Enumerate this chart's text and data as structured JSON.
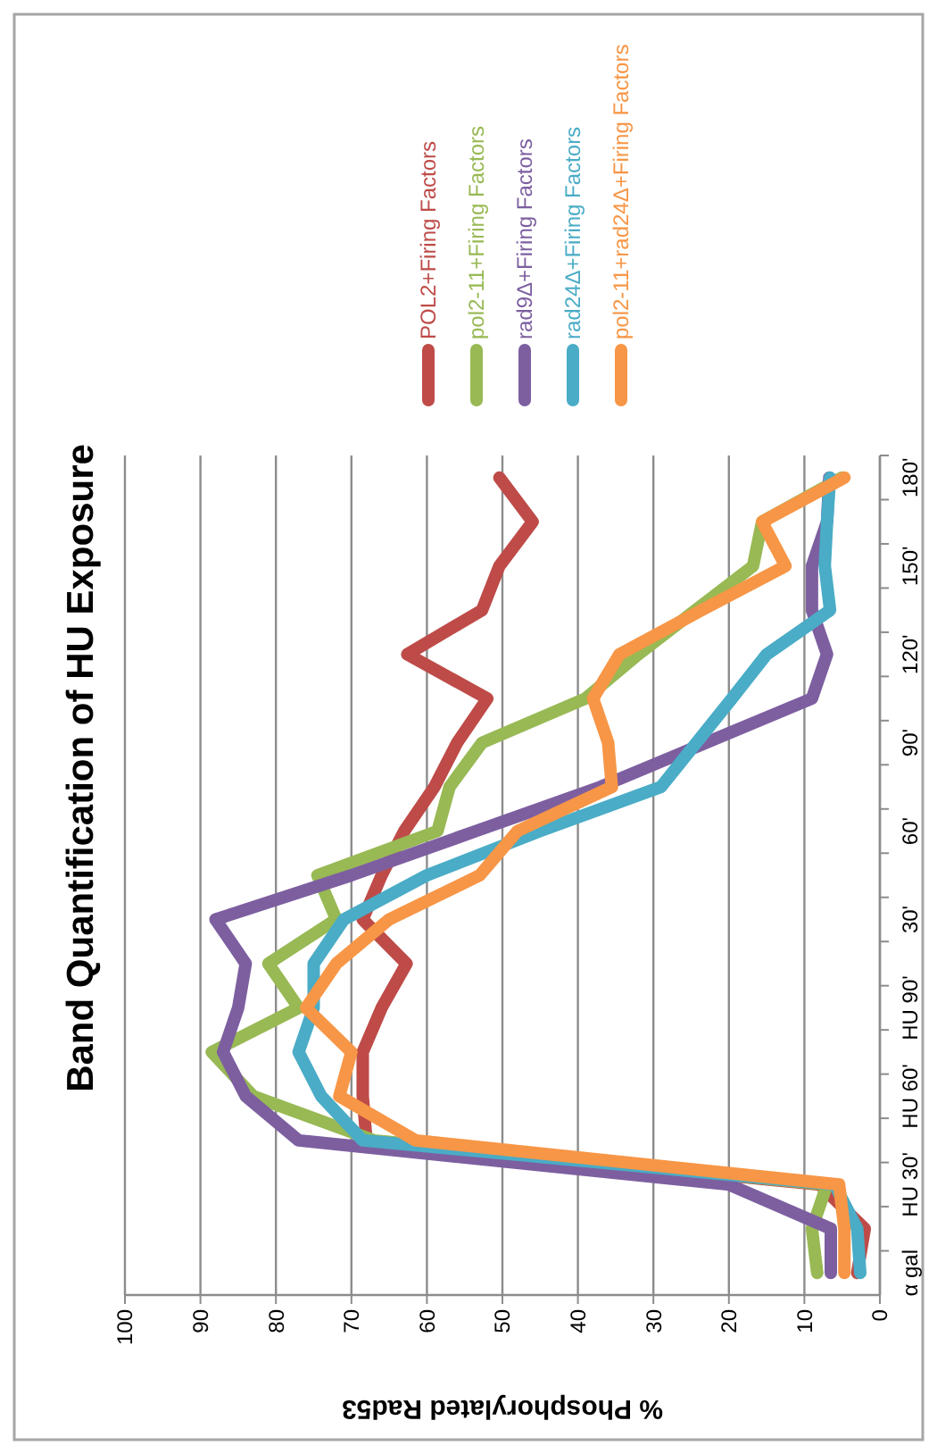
{
  "chart_data": {
    "type": "line",
    "orientation": "horizontal",
    "title": "Band Quantification of HU Exposure",
    "xlabel": "% Phosphorylated Rad53",
    "categories": [
      "180'",
      null,
      "150'",
      null,
      "120'",
      null,
      "90'",
      null,
      "60'",
      null,
      "30'",
      null,
      "HU 90'",
      null,
      "HU 60'",
      null,
      "HU 30'",
      null,
      "α gal"
    ],
    "series": [
      {
        "name": "POL2+Firing Factors",
        "color": "#be4b48",
        "values": [
          50.4,
          46,
          50.4,
          52.7,
          62.6,
          52,
          56,
          59,
          63,
          66,
          68.5,
          62.7,
          66,
          68.5,
          68.5,
          68,
          8,
          2,
          3
        ]
      },
      {
        "name": "pol2-11+Firing Factors",
        "color": "#98b954",
        "values": [
          5,
          15.6,
          16.8,
          24.4,
          32,
          39,
          52.7,
          57,
          58.6,
          74.5,
          72,
          81,
          77,
          88.5,
          83,
          67,
          7,
          9,
          8.3
        ]
      },
      {
        "name": "rad9Δ+Firing Factors",
        "color": "#7d5fa0",
        "values": [
          6.7,
          7,
          9,
          9,
          7,
          9,
          23,
          37,
          53.5,
          70,
          88,
          84,
          85,
          87,
          84,
          77,
          20,
          6.5,
          6.5
        ]
      },
      {
        "name": "rad24Δ+Firing Factors",
        "color": "#4aacc6",
        "values": [
          6.6,
          7,
          7.3,
          6.6,
          15,
          19.6,
          24.3,
          29,
          45,
          60,
          71,
          75,
          75,
          77,
          74,
          68.5,
          6,
          3,
          2.6
        ]
      },
      {
        "name": "pol2-11+rad24Δ+Firing Factors",
        "color": "#f79646",
        "values": [
          4.7,
          15.6,
          12.5,
          23.6,
          34.5,
          38,
          36,
          35.5,
          48,
          53,
          65,
          72,
          76,
          70,
          71.6,
          61.5,
          5.4,
          4.7,
          4.7
        ]
      }
    ],
    "xlim": [
      100,
      0
    ],
    "xticks": [
      100,
      90,
      80,
      70,
      60,
      50,
      40,
      30,
      20,
      10,
      0
    ],
    "grid": "x",
    "legend": "top",
    "line_style": "solid",
    "marker": "none"
  }
}
